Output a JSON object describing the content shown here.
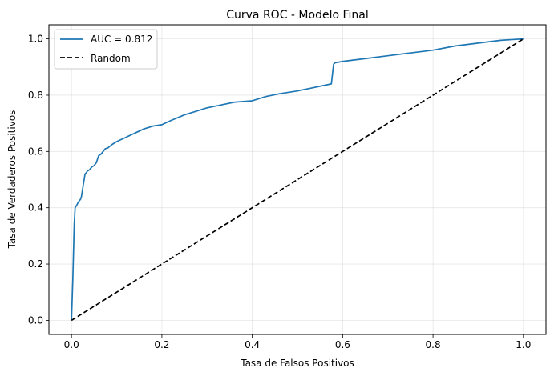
{
  "chart_data": {
    "type": "line",
    "title": "Curva ROC - Modelo Final",
    "xlabel": "Tasa de Falsos Positivos",
    "ylabel": "Tasa de Verdaderos Positivos",
    "xlim": [
      -0.05,
      1.05
    ],
    "ylim": [
      -0.05,
      1.05
    ],
    "xticks": [
      0.0,
      0.2,
      0.4,
      0.6,
      0.8,
      1.0
    ],
    "yticks": [
      0.0,
      0.2,
      0.4,
      0.6,
      0.8,
      1.0
    ],
    "xtick_labels": [
      "0.0",
      "0.2",
      "0.4",
      "0.6",
      "0.8",
      "1.0"
    ],
    "ytick_labels": [
      "0.0",
      "0.2",
      "0.4",
      "0.6",
      "0.8",
      "1.0"
    ],
    "grid": true,
    "legend_position": "top-left",
    "series": [
      {
        "name": "AUC = 0.812",
        "color": "#1f77b4",
        "style": "solid",
        "x": [
          0.0,
          0.003,
          0.006,
          0.008,
          0.01,
          0.012,
          0.015,
          0.02,
          0.022,
          0.025,
          0.028,
          0.03,
          0.033,
          0.035,
          0.04,
          0.045,
          0.05,
          0.055,
          0.06,
          0.065,
          0.07,
          0.075,
          0.08,
          0.09,
          0.1,
          0.12,
          0.14,
          0.16,
          0.18,
          0.2,
          0.22,
          0.25,
          0.28,
          0.3,
          0.33,
          0.36,
          0.4,
          0.43,
          0.46,
          0.5,
          0.53,
          0.56,
          0.575,
          0.58,
          0.583,
          0.6,
          0.65,
          0.7,
          0.75,
          0.8,
          0.85,
          0.9,
          0.95,
          1.0
        ],
        "y": [
          0.0,
          0.15,
          0.34,
          0.4,
          0.405,
          0.41,
          0.42,
          0.43,
          0.44,
          0.47,
          0.5,
          0.52,
          0.525,
          0.53,
          0.535,
          0.545,
          0.55,
          0.56,
          0.585,
          0.59,
          0.6,
          0.61,
          0.612,
          0.625,
          0.635,
          0.65,
          0.665,
          0.68,
          0.69,
          0.695,
          0.71,
          0.73,
          0.745,
          0.755,
          0.765,
          0.775,
          0.78,
          0.795,
          0.805,
          0.815,
          0.825,
          0.835,
          0.84,
          0.91,
          0.915,
          0.92,
          0.93,
          0.94,
          0.95,
          0.96,
          0.975,
          0.985,
          0.995,
          1.0
        ]
      },
      {
        "name": "Random",
        "color": "#000000",
        "style": "dashed",
        "x": [
          0.0,
          1.0
        ],
        "y": [
          0.0,
          1.0
        ]
      }
    ]
  }
}
